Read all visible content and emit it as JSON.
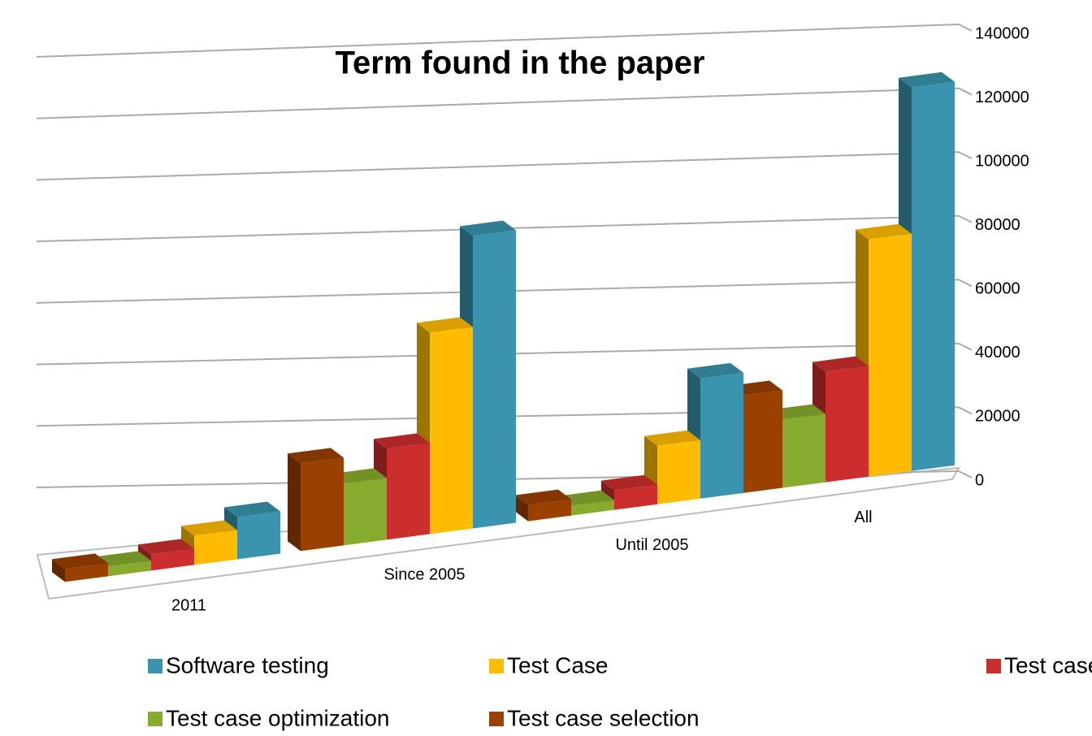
{
  "chart_data": {
    "type": "bar3d",
    "title": "Term found in the paper",
    "categories": [
      "2011",
      "Since 2005",
      "Until 2005",
      "All"
    ],
    "series": [
      {
        "name": "Software testing",
        "color": "#3a94ad",
        "values": [
          13000,
          90000,
          37000,
          118000
        ]
      },
      {
        "name": "Test Case",
        "color": "#ffbb00",
        "values": [
          9000,
          62000,
          18000,
          73000
        ]
      },
      {
        "name": "Test case generation",
        "color": "#cc2e2e",
        "values": [
          5000,
          28000,
          6000,
          34000
        ]
      },
      {
        "name": "Test case optimization",
        "color": "#86ab2e",
        "values": [
          3000,
          19000,
          3000,
          21000
        ]
      },
      {
        "name": "Test case selection",
        "color": "#9a4000",
        "values": [
          4000,
          27000,
          5000,
          30000
        ]
      }
    ],
    "ylim": [
      0,
      140000
    ],
    "yticks": [
      0,
      20000,
      40000,
      60000,
      80000,
      100000,
      120000,
      140000
    ],
    "grid": true
  }
}
